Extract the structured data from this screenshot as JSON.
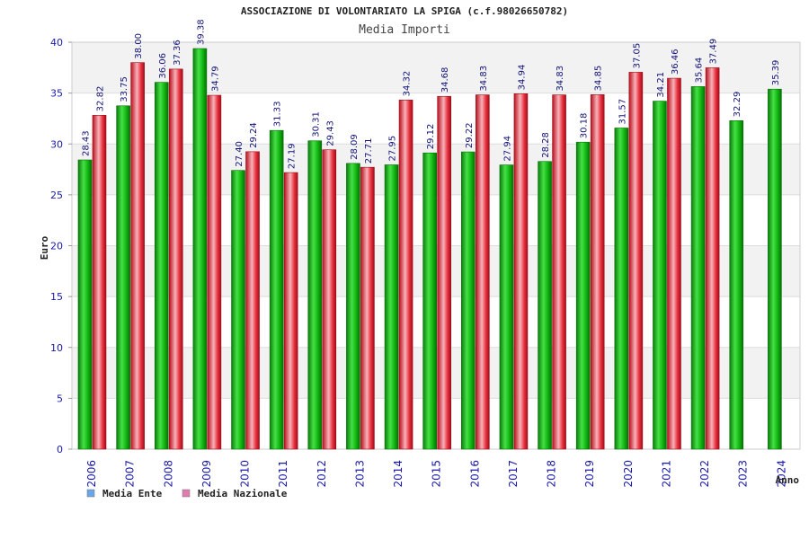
{
  "chart_data": {
    "type": "bar",
    "title": "ASSOCIAZIONE DI VOLONTARIATO LA SPIGA (c.f.98026650782)",
    "subtitle": "Media Importi",
    "xlabel": "Anno",
    "ylabel": "Euro",
    "ylim": [
      0,
      40
    ],
    "yticks": [
      0,
      5,
      10,
      15,
      20,
      25,
      30,
      35,
      40
    ],
    "grid": "horizontal bands",
    "legend_position": "bottom-left",
    "categories": [
      "2006",
      "2007",
      "2008",
      "2009",
      "2010",
      "2011",
      "2012",
      "2013",
      "2014",
      "2015",
      "2016",
      "2017",
      "2018",
      "2019",
      "2020",
      "2021",
      "2022",
      "2023",
      "2024"
    ],
    "series": [
      {
        "name": "Media Ente",
        "legend_color": "#6aa6e8",
        "bar_color": "#11b311",
        "values": [
          28.43,
          33.75,
          36.06,
          39.38,
          27.4,
          31.33,
          30.31,
          28.09,
          27.95,
          29.12,
          29.22,
          27.94,
          28.28,
          30.18,
          31.57,
          34.21,
          35.64,
          32.29,
          35.39
        ],
        "labels": [
          "28.43",
          "33.75",
          "36.06",
          "39.38",
          "27.40",
          "31.33",
          "30.31",
          "28.09",
          "27.95",
          "29.12",
          "29.22",
          "27.94",
          "28.28",
          "30.18",
          "31.57",
          "34.21",
          "35.64",
          "32.29",
          "35.39"
        ]
      },
      {
        "name": "Media Nazionale",
        "legend_color": "#e07bb0",
        "bar_color": "#e51b2b",
        "values": [
          32.82,
          38.0,
          37.36,
          34.79,
          29.24,
          27.19,
          29.43,
          27.71,
          34.32,
          34.68,
          34.83,
          34.94,
          34.83,
          34.85,
          37.05,
          36.46,
          37.49,
          null,
          null
        ],
        "labels": [
          "32.82",
          "38.00",
          "37.36",
          "34.79",
          "29.24",
          "27.19",
          "29.43",
          "27.71",
          "34.32",
          "34.68",
          "34.83",
          "34.94",
          "34.83",
          "34.85",
          "37.05",
          "36.46",
          "37.49",
          null,
          null
        ]
      }
    ]
  }
}
